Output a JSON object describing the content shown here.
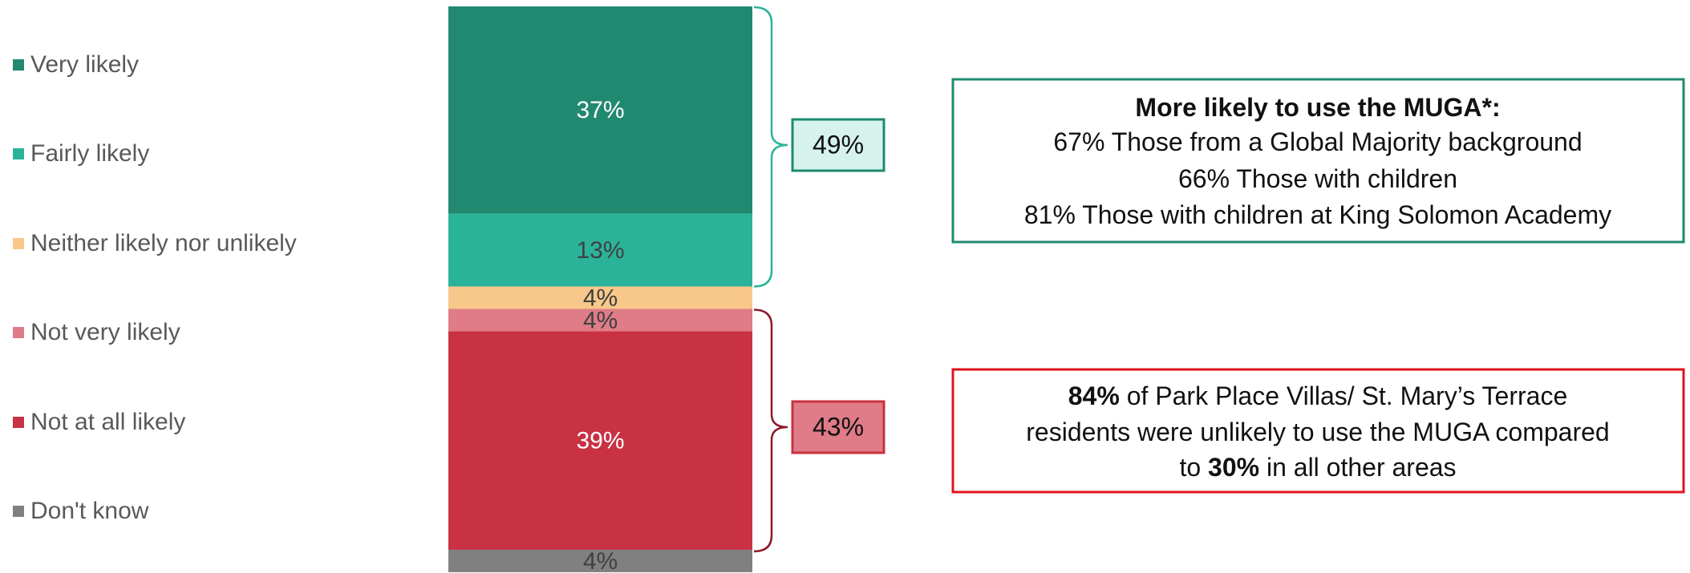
{
  "chart_data": {
    "type": "bar",
    "series": [
      {
        "name": "Very likely",
        "color": "#21896f",
        "values": [
          37
        ],
        "value_labels": [
          "37%"
        ]
      },
      {
        "name": "Fairly likely",
        "color": "#2bb39a",
        "values": [
          13
        ],
        "value_labels": [
          "13%"
        ]
      },
      {
        "name": "Neither likely nor unlikely",
        "color": "#f7c88a",
        "values": [
          4
        ],
        "value_labels": [
          "4%"
        ]
      },
      {
        "name": "Not very likely",
        "color": "#e07b88",
        "values": [
          4
        ],
        "value_labels": [
          "4%"
        ]
      },
      {
        "name": "Not at all likely",
        "color": "#c83243",
        "values": [
          39
        ],
        "value_labels": [
          "39%"
        ]
      },
      {
        "name": "Don't know",
        "color": "#808080",
        "values": [
          4
        ],
        "value_labels": [
          "4%"
        ]
      }
    ],
    "brackets": [
      {
        "value": 49,
        "label": "49%"
      },
      {
        "value": 43,
        "label": "43%"
      }
    ],
    "callouts": [
      {
        "lines": [
          [
            {
              "text": "More likely to use the MUGA*:",
              "bold": true
            }
          ],
          [
            {
              "text": "67% Those from a Global Majority background"
            }
          ],
          [
            {
              "text": "66% Those with children"
            }
          ],
          [
            {
              "text": "81% Those with children at King Solomon Academy"
            }
          ]
        ]
      },
      {
        "lines": [
          [
            {
              "text": "84%",
              "bold": true
            },
            {
              "text": " of Park Place Villas/ St. Mary’s Terrace"
            }
          ],
          [
            {
              "text": "residents were unlikely to use the MUGA compared"
            }
          ],
          [
            {
              "text": "to "
            },
            {
              "text": "30%",
              "bold": true
            },
            {
              "text": " in all other areas"
            }
          ]
        ]
      }
    ]
  }
}
